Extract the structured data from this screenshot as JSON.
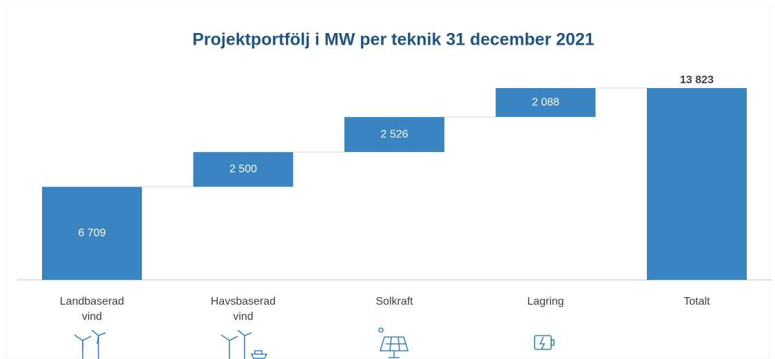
{
  "chart_data": {
    "type": "waterfall",
    "title": "Projektportfölj i MW per teknik 31 december 2021",
    "categories": [
      "Landbaserad vind",
      "Havsbaserad vind",
      "Solkraft",
      "Lagring",
      "Totalt"
    ],
    "values": [
      6709,
      2500,
      2526,
      2088,
      13823
    ],
    "value_labels": [
      "6 709",
      "2 500",
      "2 526",
      "2 088",
      "13 823"
    ],
    "color": "#3a84c1"
  }
}
